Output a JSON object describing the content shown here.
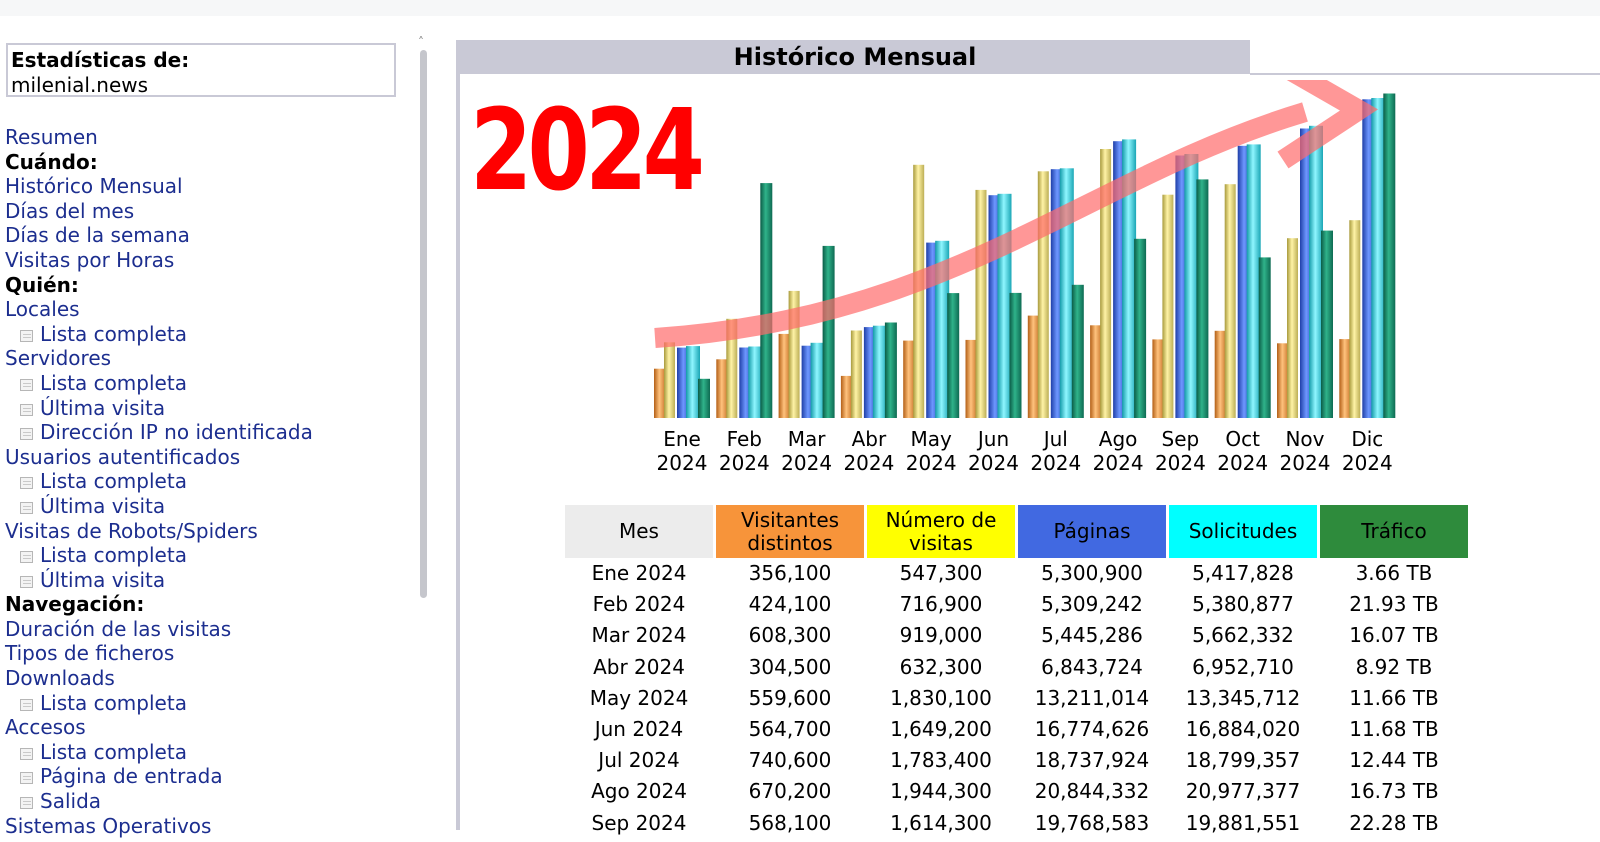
{
  "sidebar": {
    "stats_label": "Estadísticas de:",
    "site_name": "milenial.news",
    "nav": [
      {
        "type": "link",
        "label": "Resumen"
      },
      {
        "type": "section",
        "label": "Cuándo:"
      },
      {
        "type": "link",
        "label": "Histórico Mensual"
      },
      {
        "type": "link",
        "label": "Días del mes"
      },
      {
        "type": "link",
        "label": "Días de la semana"
      },
      {
        "type": "link",
        "label": "Visitas por Horas"
      },
      {
        "type": "section",
        "label": "Quién:"
      },
      {
        "type": "link",
        "label": "Locales"
      },
      {
        "type": "sub",
        "label": "Lista completa"
      },
      {
        "type": "link",
        "label": "Servidores"
      },
      {
        "type": "sub",
        "label": "Lista completa"
      },
      {
        "type": "sub",
        "label": "Última visita"
      },
      {
        "type": "sub",
        "label": "Dirección IP no identificada"
      },
      {
        "type": "link",
        "label": "Usuarios autentificados"
      },
      {
        "type": "sub",
        "label": "Lista completa"
      },
      {
        "type": "sub",
        "label": "Última visita"
      },
      {
        "type": "link",
        "label": "Visitas de Robots/Spiders"
      },
      {
        "type": "sub",
        "label": "Lista completa"
      },
      {
        "type": "sub",
        "label": "Última visita"
      },
      {
        "type": "section",
        "label": "Navegación:"
      },
      {
        "type": "link",
        "label": "Duración de las visitas"
      },
      {
        "type": "link",
        "label": "Tipos de ficheros"
      },
      {
        "type": "link",
        "label": "Downloads"
      },
      {
        "type": "sub",
        "label": "Lista completa"
      },
      {
        "type": "link",
        "label": "Accesos"
      },
      {
        "type": "sub",
        "label": "Lista completa"
      },
      {
        "type": "sub",
        "label": "Página de entrada"
      },
      {
        "type": "sub",
        "label": "Salida"
      },
      {
        "type": "link",
        "label": "Sistemas Operativos"
      }
    ]
  },
  "main": {
    "section_title": "Histórico Mensual",
    "year_overlay": "2024"
  },
  "chart_data": {
    "type": "bar",
    "categories": [
      "Ene 2024",
      "Feb 2024",
      "Mar 2024",
      "Abr 2024",
      "May 2024",
      "Jun 2024",
      "Jul 2024",
      "Ago 2024",
      "Sep 2024",
      "Oct 2024",
      "Nov 2024",
      "Dic 2024"
    ],
    "month_top": [
      "Ene",
      "Feb",
      "Mar",
      "Abr",
      "May",
      "Jun",
      "Jul",
      "Ago",
      "Sep",
      "Oct",
      "Nov",
      "Dic"
    ],
    "month_bottom": [
      "2024",
      "2024",
      "2024",
      "2024",
      "2024",
      "2024",
      "2024",
      "2024",
      "2024",
      "2024",
      "2024",
      "2024"
    ],
    "series": [
      {
        "name": "Visitantes distintos",
        "values": [
          356100,
          424100,
          608300,
          304500,
          559600,
          564700,
          740600,
          670200,
          568100,
          630000,
          540000,
          570000
        ]
      },
      {
        "name": "Número de visitas",
        "values": [
          547300,
          716900,
          919000,
          632300,
          1830100,
          1649200,
          1783400,
          1944300,
          1614300,
          1690000,
          1300000,
          1430000
        ]
      },
      {
        "name": "Páginas",
        "values": [
          5300900,
          5309242,
          5445286,
          6843724,
          13211014,
          16774626,
          18737924,
          20844332,
          19768583,
          20500000,
          21800000,
          24000000
        ]
      },
      {
        "name": "Solicitudes",
        "values": [
          5417828,
          5380877,
          5662332,
          6952710,
          13345712,
          16884020,
          18799357,
          20977377,
          19881551,
          20600000,
          22000000,
          24100000
        ]
      },
      {
        "name": "Tráfico",
        "values": [
          3.66,
          21.93,
          16.07,
          8.92,
          11.66,
          11.68,
          12.44,
          16.73,
          22.28,
          15.0,
          17.5,
          30.3
        ]
      }
    ],
    "colors": {
      "visitantes": "#f79437",
      "visitas": "#ffff00",
      "paginas": "#4169e1",
      "solicitudes": "#00ffff",
      "trafico": "#2e8b57",
      "arrow": "#ff6b6b"
    }
  },
  "table": {
    "headers": [
      {
        "label_1": "Mes",
        "label_2": "",
        "bg": "#ececec"
      },
      {
        "label_1": "Visitantes",
        "label_2": "distintos",
        "bg": "#f7943a"
      },
      {
        "label_1": "Número de",
        "label_2": "visitas",
        "bg": "#ffff00"
      },
      {
        "label_1": "Páginas",
        "label_2": "",
        "bg": "#4169e1"
      },
      {
        "label_1": "Solicitudes",
        "label_2": "",
        "bg": "#00ffff"
      },
      {
        "label_1": "Tráfico",
        "label_2": "",
        "bg": "#2e8b3c"
      }
    ],
    "rows": [
      [
        "Ene 2024",
        "356,100",
        "547,300",
        "5,300,900",
        "5,417,828",
        "3.66 TB"
      ],
      [
        "Feb 2024",
        "424,100",
        "716,900",
        "5,309,242",
        "5,380,877",
        "21.93 TB"
      ],
      [
        "Mar 2024",
        "608,300",
        "919,000",
        "5,445,286",
        "5,662,332",
        "16.07 TB"
      ],
      [
        "Abr 2024",
        "304,500",
        "632,300",
        "6,843,724",
        "6,952,710",
        "8.92 TB"
      ],
      [
        "May 2024",
        "559,600",
        "1,830,100",
        "13,211,014",
        "13,345,712",
        "11.66 TB"
      ],
      [
        "Jun 2024",
        "564,700",
        "1,649,200",
        "16,774,626",
        "16,884,020",
        "11.68 TB"
      ],
      [
        "Jul 2024",
        "740,600",
        "1,783,400",
        "18,737,924",
        "18,799,357",
        "12.44 TB"
      ],
      [
        "Ago 2024",
        "670,200",
        "1,944,300",
        "20,844,332",
        "20,977,377",
        "16.73 TB"
      ],
      [
        "Sep 2024",
        "568,100",
        "1,614,300",
        "19,768,583",
        "19,881,551",
        "22.28 TB"
      ]
    ]
  }
}
